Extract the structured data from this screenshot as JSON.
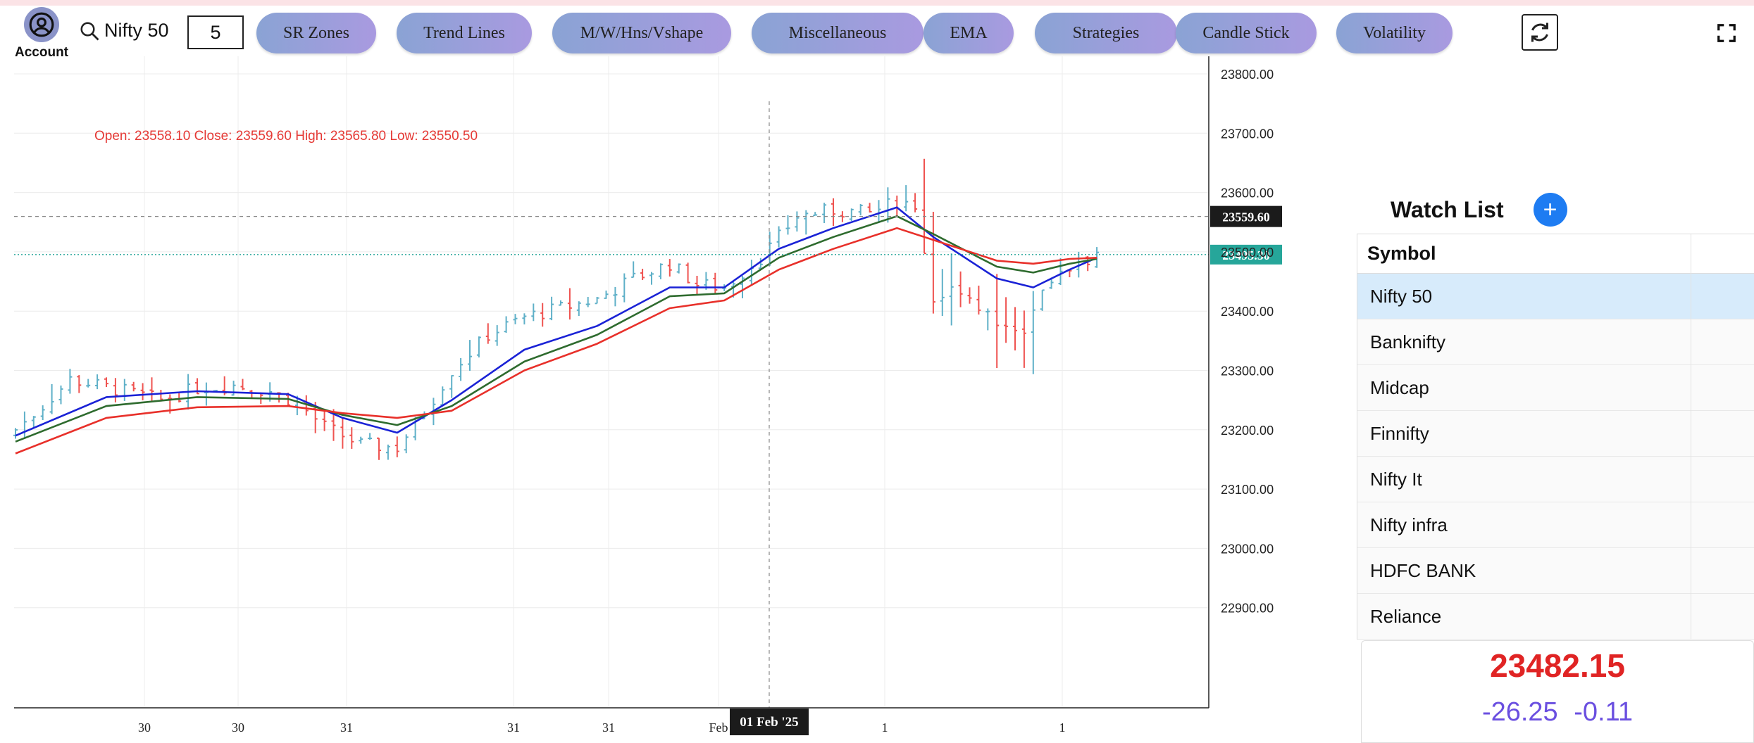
{
  "colors": {
    "up": "#5fb0c8",
    "down": "#ef5350",
    "ema_fast": "#1a22d6",
    "ema_mid": "#2e6b2e",
    "ema_slow": "#e8302a",
    "crosshair_badge": "#1b1b1b",
    "last_price_badge": "#26a69a"
  },
  "account": {
    "label": "Account",
    "icon": "user-circle-icon"
  },
  "search": {
    "symbol": "Nifty 50",
    "icon": "search-icon"
  },
  "interval": {
    "value": "5"
  },
  "toolbar": {
    "buttons": [
      {
        "label": "SR Zones"
      },
      {
        "label": "Trend Lines"
      },
      {
        "label": "M/W/Hns/Vshape"
      },
      {
        "label": "Miscellaneous"
      },
      {
        "label": "EMA"
      },
      {
        "label": "Strategies"
      },
      {
        "label": "Candle Stick"
      },
      {
        "label": "Volatility"
      }
    ],
    "refresh_icon": "refresh-icon",
    "fullscreen_icon": "fullscreen-icon"
  },
  "chart_data": {
    "type": "candlestick",
    "ohlc_legend": "Open: 23558.10 Close: 23559.60 High: 23565.80 Low: 23550.50",
    "y_ticks": [
      "23800.00",
      "23700.00",
      "23600.00",
      "23500.00",
      "23400.00",
      "23300.00",
      "23200.00",
      "23100.00",
      "23000.00",
      "22900.00"
    ],
    "y_tick_values": [
      23800,
      23700,
      23600,
      23500,
      23400,
      23300,
      23200,
      23100,
      23000,
      22900
    ],
    "ylim": [
      22800,
      23900
    ],
    "x_ticks": [
      "30",
      "30",
      "31",
      "31",
      "31",
      "Feb",
      "1",
      "1"
    ],
    "crosshair": {
      "price": 23559.6,
      "price_label": "23559.60",
      "time_label": "01 Feb '25",
      "index": 80
    },
    "last_price": {
      "price": 23495.3,
      "label": "23495.30"
    },
    "candle_count": 120,
    "close_anchors": [
      [
        0,
        23200
      ],
      [
        3,
        23240
      ],
      [
        6,
        23285
      ],
      [
        9,
        23275
      ],
      [
        12,
        23265
      ],
      [
        16,
        23250
      ],
      [
        20,
        23270
      ],
      [
        24,
        23275
      ],
      [
        28,
        23265
      ],
      [
        31,
        23245
      ],
      [
        34,
        23205
      ],
      [
        38,
        23175
      ],
      [
        42,
        23170
      ],
      [
        45,
        23230
      ],
      [
        48,
        23300
      ],
      [
        52,
        23360
      ],
      [
        56,
        23390
      ],
      [
        60,
        23405
      ],
      [
        64,
        23420
      ],
      [
        68,
        23455
      ],
      [
        72,
        23480
      ],
      [
        75,
        23445
      ],
      [
        78,
        23440
      ],
      [
        82,
        23490
      ],
      [
        86,
        23560
      ],
      [
        90,
        23570
      ],
      [
        94,
        23565
      ],
      [
        97,
        23585
      ],
      [
        99,
        23580
      ],
      [
        101,
        23420
      ],
      [
        104,
        23440
      ],
      [
        108,
        23380
      ],
      [
        111,
        23370
      ],
      [
        113,
        23430
      ],
      [
        116,
        23475
      ],
      [
        119,
        23495
      ]
    ],
    "series": [
      {
        "type": "ema",
        "color": "#1a22d6",
        "points": [
          [
            0,
            23190
          ],
          [
            10,
            23255
          ],
          [
            20,
            23265
          ],
          [
            30,
            23260
          ],
          [
            36,
            23220
          ],
          [
            42,
            23195
          ],
          [
            48,
            23250
          ],
          [
            56,
            23335
          ],
          [
            64,
            23375
          ],
          [
            72,
            23440
          ],
          [
            78,
            23440
          ],
          [
            84,
            23505
          ],
          [
            90,
            23540
          ],
          [
            97,
            23575
          ],
          [
            101,
            23525
          ],
          [
            108,
            23455
          ],
          [
            112,
            23440
          ],
          [
            116,
            23470
          ],
          [
            119,
            23490
          ]
        ]
      },
      {
        "type": "ema",
        "color": "#2e6b2e",
        "points": [
          [
            0,
            23180
          ],
          [
            10,
            23240
          ],
          [
            20,
            23255
          ],
          [
            30,
            23252
          ],
          [
            36,
            23225
          ],
          [
            42,
            23208
          ],
          [
            48,
            23240
          ],
          [
            56,
            23315
          ],
          [
            64,
            23360
          ],
          [
            72,
            23425
          ],
          [
            78,
            23430
          ],
          [
            84,
            23490
          ],
          [
            90,
            23525
          ],
          [
            97,
            23560
          ],
          [
            101,
            23530
          ],
          [
            108,
            23475
          ],
          [
            112,
            23465
          ],
          [
            116,
            23480
          ],
          [
            119,
            23488
          ]
        ]
      },
      {
        "type": "ema",
        "color": "#e8302a",
        "points": [
          [
            0,
            23160
          ],
          [
            10,
            23220
          ],
          [
            20,
            23238
          ],
          [
            30,
            23240
          ],
          [
            36,
            23228
          ],
          [
            42,
            23220
          ],
          [
            48,
            23232
          ],
          [
            56,
            23300
          ],
          [
            64,
            23345
          ],
          [
            72,
            23405
          ],
          [
            78,
            23418
          ],
          [
            84,
            23470
          ],
          [
            90,
            23505
          ],
          [
            97,
            23540
          ],
          [
            101,
            23520
          ],
          [
            108,
            23485
          ],
          [
            112,
            23480
          ],
          [
            116,
            23488
          ],
          [
            119,
            23490
          ]
        ]
      }
    ]
  },
  "watchlist": {
    "title": "Watch List",
    "add_icon": "plus-icon",
    "column_header": "Symbol",
    "selected_index": 0,
    "items": [
      "Nifty 50",
      "Banknifty",
      "Midcap",
      "Finnifty",
      "Nifty It",
      "Nifty infra",
      "HDFC BANK",
      "Reliance"
    ]
  },
  "quote": {
    "price": "23482.15",
    "change": "-26.25",
    "change_pct": "-0.11"
  }
}
